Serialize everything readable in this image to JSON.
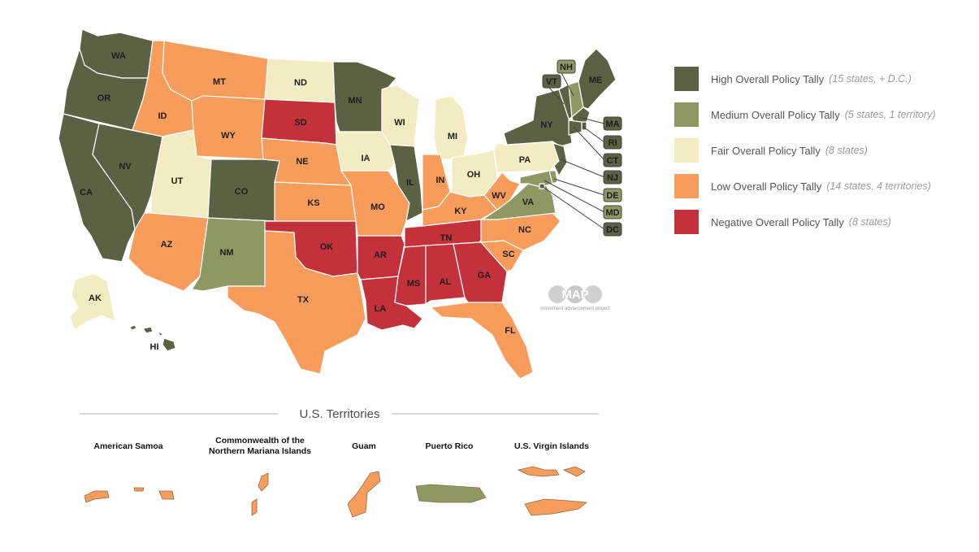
{
  "colors": {
    "high": "#5b6143",
    "medium": "#8e9863",
    "fair": "#f3ecc3",
    "low": "#f89c5c",
    "negative": "#c3313a"
  },
  "legend": [
    {
      "key": "high",
      "label": "High Overall Policy Tally",
      "note": "(15 states, + D.C.)"
    },
    {
      "key": "medium",
      "label": "Medium Overall Policy Tally",
      "note": "(5 states, 1 territory)"
    },
    {
      "key": "fair",
      "label": "Fair Overall Policy Tally",
      "note": "(8 states)"
    },
    {
      "key": "low",
      "label": "Low Overall Policy Tally",
      "note": "(14 states, 4 territories)"
    },
    {
      "key": "negative",
      "label": "Negative Overall Policy Tally",
      "note": "(8 states)"
    }
  ],
  "states": [
    {
      "abbr": "WA",
      "tier": "high"
    },
    {
      "abbr": "OR",
      "tier": "high"
    },
    {
      "abbr": "CA",
      "tier": "high"
    },
    {
      "abbr": "NV",
      "tier": "high"
    },
    {
      "abbr": "ID",
      "tier": "low"
    },
    {
      "abbr": "MT",
      "tier": "low"
    },
    {
      "abbr": "WY",
      "tier": "low"
    },
    {
      "abbr": "UT",
      "tier": "fair"
    },
    {
      "abbr": "AZ",
      "tier": "low"
    },
    {
      "abbr": "CO",
      "tier": "high"
    },
    {
      "abbr": "NM",
      "tier": "medium"
    },
    {
      "abbr": "ND",
      "tier": "fair"
    },
    {
      "abbr": "SD",
      "tier": "negative"
    },
    {
      "abbr": "NE",
      "tier": "low"
    },
    {
      "abbr": "KS",
      "tier": "low"
    },
    {
      "abbr": "OK",
      "tier": "negative"
    },
    {
      "abbr": "TX",
      "tier": "low"
    },
    {
      "abbr": "MN",
      "tier": "high"
    },
    {
      "abbr": "IA",
      "tier": "fair"
    },
    {
      "abbr": "MO",
      "tier": "low"
    },
    {
      "abbr": "AR",
      "tier": "negative"
    },
    {
      "abbr": "LA",
      "tier": "negative"
    },
    {
      "abbr": "WI",
      "tier": "fair"
    },
    {
      "abbr": "IL",
      "tier": "high"
    },
    {
      "abbr": "MI",
      "tier": "fair"
    },
    {
      "abbr": "IN",
      "tier": "low"
    },
    {
      "abbr": "OH",
      "tier": "fair"
    },
    {
      "abbr": "KY",
      "tier": "low"
    },
    {
      "abbr": "TN",
      "tier": "negative"
    },
    {
      "abbr": "MS",
      "tier": "negative"
    },
    {
      "abbr": "AL",
      "tier": "negative"
    },
    {
      "abbr": "GA",
      "tier": "negative"
    },
    {
      "abbr": "FL",
      "tier": "low"
    },
    {
      "abbr": "SC",
      "tier": "low"
    },
    {
      "abbr": "NC",
      "tier": "low"
    },
    {
      "abbr": "VA",
      "tier": "medium"
    },
    {
      "abbr": "WV",
      "tier": "low"
    },
    {
      "abbr": "PA",
      "tier": "fair"
    },
    {
      "abbr": "NY",
      "tier": "high"
    },
    {
      "abbr": "VT",
      "tier": "high"
    },
    {
      "abbr": "NH",
      "tier": "medium"
    },
    {
      "abbr": "ME",
      "tier": "high"
    },
    {
      "abbr": "MA",
      "tier": "high"
    },
    {
      "abbr": "RI",
      "tier": "high"
    },
    {
      "abbr": "CT",
      "tier": "high"
    },
    {
      "abbr": "NJ",
      "tier": "high"
    },
    {
      "abbr": "DE",
      "tier": "medium"
    },
    {
      "abbr": "MD",
      "tier": "medium"
    },
    {
      "abbr": "DC",
      "tier": "high"
    },
    {
      "abbr": "AK",
      "tier": "fair"
    },
    {
      "abbr": "HI",
      "tier": "high"
    }
  ],
  "territories_title": "U.S. Territories",
  "territories": [
    {
      "name_lines": [
        "American Samoa"
      ],
      "tier": "low"
    },
    {
      "name_lines": [
        "Commonwealth of the",
        "Northern Mariana Islands"
      ],
      "tier": "low"
    },
    {
      "name_lines": [
        "Guam"
      ],
      "tier": "low"
    },
    {
      "name_lines": [
        "Puerto Rico"
      ],
      "tier": "medium"
    },
    {
      "name_lines": [
        "U.S. Virgin Islands"
      ],
      "tier": "low"
    }
  ],
  "logo": {
    "text": "MAP",
    "sub": "movement advancement project"
  }
}
